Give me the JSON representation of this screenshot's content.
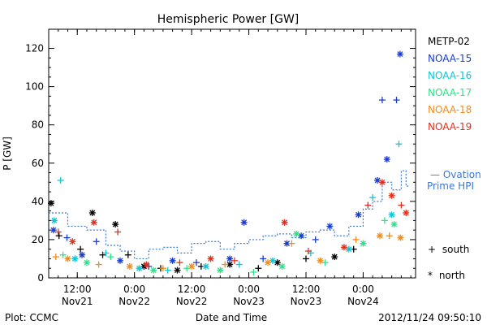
{
  "chart_data": {
    "type": "scatter",
    "title": "Hemispheric Power [GW]",
    "ylabel": "P [GW]",
    "xlabel": "Date and Time",
    "ylim": [
      0,
      130
    ],
    "yticks": [
      0,
      20,
      40,
      60,
      80,
      100,
      120
    ],
    "xlim": [
      "2012-11-21T06:00",
      "2012-11-24T11:00"
    ],
    "xticks": [
      {
        "at": "2012-11-21T12:00",
        "time": "12:00",
        "day": "Nov21"
      },
      {
        "at": "2012-11-22T00:00",
        "time": "0:00",
        "day": "Nov22"
      },
      {
        "at": "2012-11-22T12:00",
        "time": "12:00",
        "day": "Nov22"
      },
      {
        "at": "2012-11-23T00:00",
        "time": "0:00",
        "day": "Nov23"
      },
      {
        "at": "2012-11-23T12:00",
        "time": "12:00",
        "day": "Nov23"
      },
      {
        "at": "2012-11-24T00:00",
        "time": "0:00",
        "day": "Nov24"
      }
    ],
    "footer": {
      "left": "Plot: CCMC",
      "right": "2012/11/24 09:50:10"
    },
    "legend_position": "right",
    "series": [
      {
        "name": "METP-02",
        "color": "#000000",
        "points": [
          {
            "x": "2012-11-21T06:30",
            "y": 39,
            "hem": "north"
          },
          {
            "x": "2012-11-21T08:10",
            "y": 22,
            "hem": "south"
          },
          {
            "x": "2012-11-21T12:40",
            "y": 15,
            "hem": "south"
          },
          {
            "x": "2012-11-21T15:10",
            "y": 34,
            "hem": "north"
          },
          {
            "x": "2012-11-21T17:20",
            "y": 12,
            "hem": "south"
          },
          {
            "x": "2012-11-21T20:00",
            "y": 28,
            "hem": "north"
          },
          {
            "x": "2012-11-21T22:40",
            "y": 12,
            "hem": "south"
          },
          {
            "x": "2012-11-22T02:00",
            "y": 6,
            "hem": "north"
          },
          {
            "x": "2012-11-22T05:30",
            "y": 5,
            "hem": "south"
          },
          {
            "x": "2012-11-22T09:00",
            "y": 4,
            "hem": "north"
          },
          {
            "x": "2012-11-22T14:00",
            "y": 6,
            "hem": "south"
          },
          {
            "x": "2012-11-22T20:00",
            "y": 7,
            "hem": "north"
          },
          {
            "x": "2012-11-23T02:00",
            "y": 5,
            "hem": "south"
          },
          {
            "x": "2012-11-23T06:00",
            "y": 8,
            "hem": "north"
          },
          {
            "x": "2012-11-23T12:00",
            "y": 10,
            "hem": "south"
          },
          {
            "x": "2012-11-23T18:00",
            "y": 11,
            "hem": "north"
          },
          {
            "x": "2012-11-23T22:00",
            "y": 15,
            "hem": "south"
          }
        ]
      },
      {
        "name": "NOAA-15",
        "color": "#1a3ccc",
        "points": [
          {
            "x": "2012-11-21T07:00",
            "y": 25,
            "hem": "north"
          },
          {
            "x": "2012-11-21T09:50",
            "y": 21,
            "hem": "south"
          },
          {
            "x": "2012-11-21T13:00",
            "y": 12,
            "hem": "north"
          },
          {
            "x": "2012-11-21T16:00",
            "y": 19,
            "hem": "south"
          },
          {
            "x": "2012-11-21T21:00",
            "y": 9,
            "hem": "north"
          },
          {
            "x": "2012-11-22T03:00",
            "y": 6,
            "hem": "south"
          },
          {
            "x": "2012-11-22T08:00",
            "y": 9,
            "hem": "north"
          },
          {
            "x": "2012-11-22T13:00",
            "y": 8,
            "hem": "south"
          },
          {
            "x": "2012-11-22T20:00",
            "y": 10,
            "hem": "north"
          },
          {
            "x": "2012-11-22T23:00",
            "y": 29,
            "hem": "north"
          },
          {
            "x": "2012-11-23T03:00",
            "y": 10,
            "hem": "south"
          },
          {
            "x": "2012-11-23T08:00",
            "y": 18,
            "hem": "north"
          },
          {
            "x": "2012-11-23T11:00",
            "y": 22,
            "hem": "north"
          },
          {
            "x": "2012-11-23T14:00",
            "y": 20,
            "hem": "south"
          },
          {
            "x": "2012-11-23T17:00",
            "y": 27,
            "hem": "north"
          },
          {
            "x": "2012-11-23T23:00",
            "y": 33,
            "hem": "north"
          },
          {
            "x": "2012-11-24T03:00",
            "y": 51,
            "hem": "north"
          },
          {
            "x": "2012-11-24T04:00",
            "y": 93,
            "hem": "south"
          },
          {
            "x": "2012-11-24T05:00",
            "y": 62,
            "hem": "north"
          },
          {
            "x": "2012-11-24T07:00",
            "y": 93,
            "hem": "south"
          },
          {
            "x": "2012-11-24T07:45",
            "y": 117,
            "hem": "north"
          }
        ]
      },
      {
        "name": "NOAA-16",
        "color": "#12c4d4",
        "points": [
          {
            "x": "2012-11-21T07:10",
            "y": 30,
            "hem": "north"
          },
          {
            "x": "2012-11-21T08:30",
            "y": 51,
            "hem": "south"
          },
          {
            "x": "2012-11-21T11:30",
            "y": 10,
            "hem": "north"
          },
          {
            "x": "2012-11-21T18:00",
            "y": 13,
            "hem": "south"
          },
          {
            "x": "2012-11-22T01:00",
            "y": 5,
            "hem": "north"
          },
          {
            "x": "2012-11-22T07:00",
            "y": 4,
            "hem": "south"
          },
          {
            "x": "2012-11-22T15:00",
            "y": 6,
            "hem": "north"
          },
          {
            "x": "2012-11-22T22:00",
            "y": 7,
            "hem": "south"
          },
          {
            "x": "2012-11-23T05:00",
            "y": 9,
            "hem": "north"
          },
          {
            "x": "2012-11-23T13:00",
            "y": 13,
            "hem": "south"
          },
          {
            "x": "2012-11-23T21:00",
            "y": 15,
            "hem": "north"
          },
          {
            "x": "2012-11-24T02:00",
            "y": 42,
            "hem": "south"
          },
          {
            "x": "2012-11-24T06:00",
            "y": 33,
            "hem": "north"
          },
          {
            "x": "2012-11-24T07:30",
            "y": 70,
            "hem": "south"
          }
        ]
      },
      {
        "name": "NOAA-17",
        "color": "#2ee08a",
        "points": [
          {
            "x": "2012-11-21T09:00",
            "y": 12,
            "hem": "south"
          },
          {
            "x": "2012-11-21T14:00",
            "y": 8,
            "hem": "north"
          },
          {
            "x": "2012-11-21T19:00",
            "y": 11,
            "hem": "south"
          },
          {
            "x": "2012-11-22T04:00",
            "y": 4,
            "hem": "north"
          },
          {
            "x": "2012-11-22T11:00",
            "y": 5,
            "hem": "south"
          },
          {
            "x": "2012-11-22T18:00",
            "y": 4,
            "hem": "north"
          },
          {
            "x": "2012-11-23T01:00",
            "y": 3,
            "hem": "south"
          },
          {
            "x": "2012-11-23T07:00",
            "y": 6,
            "hem": "north"
          },
          {
            "x": "2012-11-23T10:00",
            "y": 23,
            "hem": "north"
          },
          {
            "x": "2012-11-23T16:00",
            "y": 8,
            "hem": "south"
          },
          {
            "x": "2012-11-24T00:00",
            "y": 18,
            "hem": "north"
          },
          {
            "x": "2012-11-24T04:30",
            "y": 30,
            "hem": "south"
          },
          {
            "x": "2012-11-24T06:30",
            "y": 28,
            "hem": "north"
          }
        ]
      },
      {
        "name": "NOAA-18",
        "color": "#f08c1e",
        "points": [
          {
            "x": "2012-11-21T07:30",
            "y": 11,
            "hem": "south"
          },
          {
            "x": "2012-11-21T10:00",
            "y": 10,
            "hem": "north"
          },
          {
            "x": "2012-11-21T16:30",
            "y": 7,
            "hem": "south"
          },
          {
            "x": "2012-11-21T23:00",
            "y": 6,
            "hem": "north"
          },
          {
            "x": "2012-11-22T06:00",
            "y": 5,
            "hem": "south"
          },
          {
            "x": "2012-11-22T12:00",
            "y": 6,
            "hem": "north"
          },
          {
            "x": "2012-11-22T19:00",
            "y": 7,
            "hem": "south"
          },
          {
            "x": "2012-11-23T04:00",
            "y": 8,
            "hem": "north"
          },
          {
            "x": "2012-11-23T09:00",
            "y": 18,
            "hem": "south"
          },
          {
            "x": "2012-11-23T15:00",
            "y": 9,
            "hem": "north"
          },
          {
            "x": "2012-11-23T22:30",
            "y": 20,
            "hem": "south"
          },
          {
            "x": "2012-11-24T03:30",
            "y": 22,
            "hem": "north"
          },
          {
            "x": "2012-11-24T05:30",
            "y": 22,
            "hem": "south"
          },
          {
            "x": "2012-11-24T07:50",
            "y": 21,
            "hem": "north"
          }
        ]
      },
      {
        "name": "NOAA-19",
        "color": "#e0301e",
        "points": [
          {
            "x": "2012-11-21T08:00",
            "y": 24,
            "hem": "south"
          },
          {
            "x": "2012-11-21T11:00",
            "y": 19,
            "hem": "north"
          },
          {
            "x": "2012-11-21T15:30",
            "y": 29,
            "hem": "north"
          },
          {
            "x": "2012-11-21T20:30",
            "y": 24,
            "hem": "south"
          },
          {
            "x": "2012-11-22T02:30",
            "y": 7,
            "hem": "north"
          },
          {
            "x": "2012-11-22T09:30",
            "y": 8,
            "hem": "south"
          },
          {
            "x": "2012-11-22T16:00",
            "y": 10,
            "hem": "north"
          },
          {
            "x": "2012-11-22T21:00",
            "y": 9,
            "hem": "south"
          },
          {
            "x": "2012-11-23T07:30",
            "y": 29,
            "hem": "north"
          },
          {
            "x": "2012-11-23T12:30",
            "y": 14,
            "hem": "south"
          },
          {
            "x": "2012-11-23T20:00",
            "y": 16,
            "hem": "north"
          },
          {
            "x": "2012-11-24T01:00",
            "y": 38,
            "hem": "south"
          },
          {
            "x": "2012-11-24T04:00",
            "y": 50,
            "hem": "north"
          },
          {
            "x": "2012-11-24T06:00",
            "y": 43,
            "hem": "north"
          },
          {
            "x": "2012-11-24T08:00",
            "y": 38,
            "hem": "south"
          },
          {
            "x": "2012-11-24T09:00",
            "y": 34,
            "hem": "north"
          }
        ]
      }
    ],
    "ovation": {
      "name": "Ovation",
      "name2": "Prime HPI",
      "color": "#3a78d8",
      "points": [
        {
          "x": "2012-11-21T06:00",
          "y": 34
        },
        {
          "x": "2012-11-21T10:00",
          "y": 27
        },
        {
          "x": "2012-11-21T14:00",
          "y": 25
        },
        {
          "x": "2012-11-21T18:00",
          "y": 17
        },
        {
          "x": "2012-11-21T21:00",
          "y": 14
        },
        {
          "x": "2012-11-22T00:00",
          "y": 10
        },
        {
          "x": "2012-11-22T03:00",
          "y": 15
        },
        {
          "x": "2012-11-22T06:00",
          "y": 16
        },
        {
          "x": "2012-11-22T09:00",
          "y": 13
        },
        {
          "x": "2012-11-22T12:00",
          "y": 18
        },
        {
          "x": "2012-11-22T15:00",
          "y": 19
        },
        {
          "x": "2012-11-22T18:00",
          "y": 15
        },
        {
          "x": "2012-11-22T21:00",
          "y": 18
        },
        {
          "x": "2012-11-23T00:00",
          "y": 20
        },
        {
          "x": "2012-11-23T03:00",
          "y": 22
        },
        {
          "x": "2012-11-23T06:00",
          "y": 23
        },
        {
          "x": "2012-11-23T09:00",
          "y": 21
        },
        {
          "x": "2012-11-23T12:00",
          "y": 24
        },
        {
          "x": "2012-11-23T15:00",
          "y": 25
        },
        {
          "x": "2012-11-23T18:00",
          "y": 22
        },
        {
          "x": "2012-11-23T21:00",
          "y": 27
        },
        {
          "x": "2012-11-24T00:00",
          "y": 36
        },
        {
          "x": "2012-11-24T02:00",
          "y": 40
        },
        {
          "x": "2012-11-24T04:00",
          "y": 50
        },
        {
          "x": "2012-11-24T06:00",
          "y": 46
        },
        {
          "x": "2012-11-24T08:00",
          "y": 56
        },
        {
          "x": "2012-11-24T09:00",
          "y": 48
        }
      ]
    },
    "marker_legend": [
      {
        "symbol": "+",
        "label": "south"
      },
      {
        "symbol": "*",
        "label": "north"
      }
    ]
  }
}
